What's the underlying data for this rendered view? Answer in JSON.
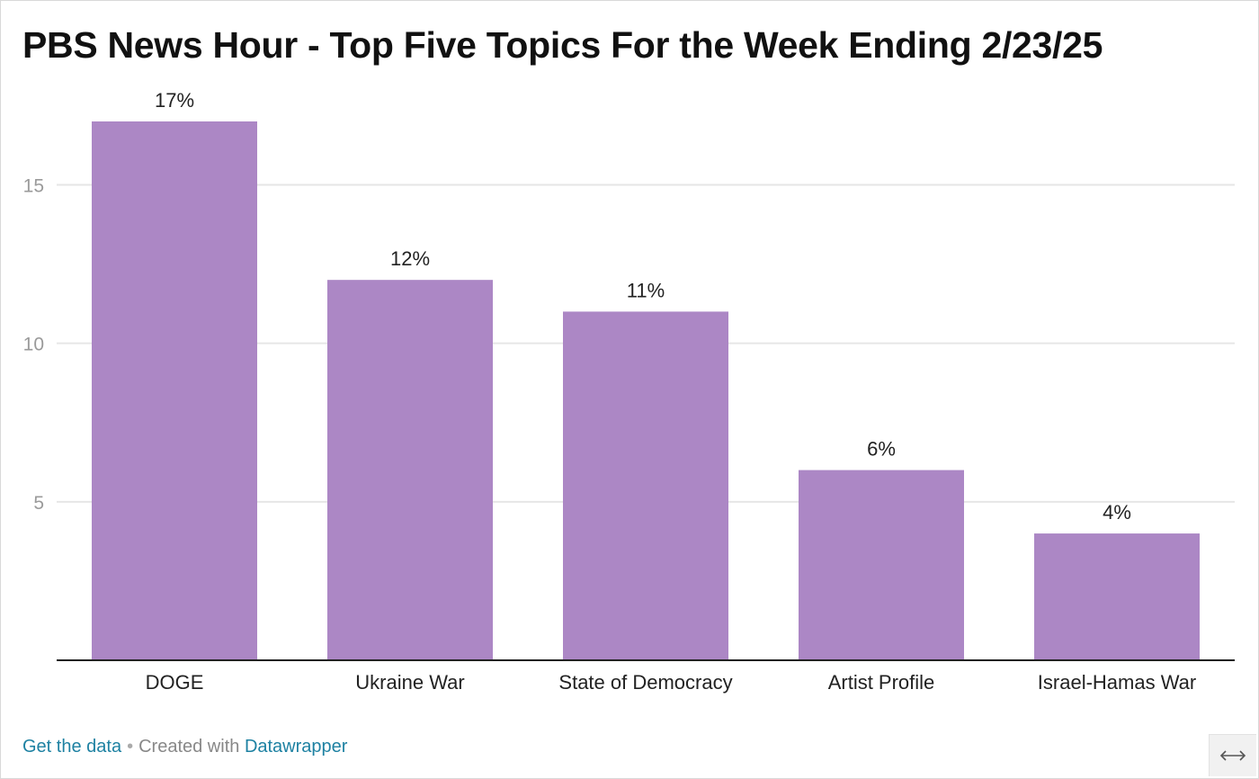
{
  "chart_data": {
    "type": "bar",
    "title": "PBS News Hour - Top Five Topics For the Week Ending 2/23/25",
    "categories": [
      "DOGE",
      "Ukraine War",
      "State of Democracy",
      "Artist Profile",
      "Israel-Hamas War"
    ],
    "values": [
      17,
      12,
      11,
      6,
      4
    ],
    "data_labels": [
      "17%",
      "12%",
      "11%",
      "6%",
      "4%"
    ],
    "yticks": [
      5,
      10,
      15
    ],
    "ytick_labels": [
      "5",
      "10",
      "15"
    ],
    "ylim": [
      0,
      17
    ],
    "xlabel": "",
    "ylabel": "",
    "grid": true,
    "bar_color": "#ac87c5",
    "gridline_color": "#e6e6e6",
    "axis_color": "#222222"
  },
  "footer": {
    "get_data_label": "Get the data",
    "separator": "•",
    "created_with_label": "Created with",
    "datawrapper_label": "Datawrapper",
    "link_color": "#1d81a2"
  },
  "resize_handle": {
    "icon": "horizontal-resize-arrows-icon"
  }
}
